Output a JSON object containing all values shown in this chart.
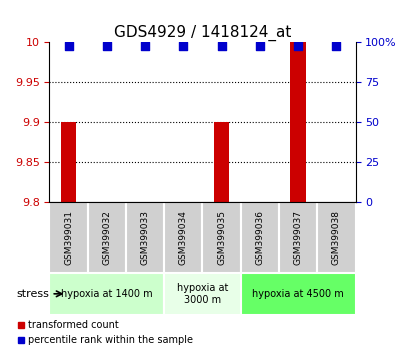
{
  "title": "GDS4929 / 1418124_at",
  "samples": [
    "GSM399031",
    "GSM399032",
    "GSM399033",
    "GSM399034",
    "GSM399035",
    "GSM399036",
    "GSM399037",
    "GSM399038"
  ],
  "transformed_counts": [
    9.9,
    9.8,
    9.8,
    9.8,
    9.9,
    9.8,
    10.0,
    9.8
  ],
  "percentile_ranks": [
    98,
    98,
    98,
    98,
    98,
    98,
    98,
    98
  ],
  "ylim_left": [
    9.8,
    10.0
  ],
  "yticks_left": [
    9.8,
    9.85,
    9.9,
    9.95,
    10.0
  ],
  "ytick_labels_left": [
    "9.8",
    "9.85",
    "9.9",
    "9.95",
    "10"
  ],
  "ylim_right": [
    0,
    100
  ],
  "yticks_right": [
    0,
    25,
    50,
    75,
    100
  ],
  "ytick_labels_right": [
    "0",
    "25",
    "50",
    "75",
    "100%"
  ],
  "bar_color": "#cc0000",
  "dot_color": "#0000cc",
  "left_tick_color": "#cc0000",
  "right_tick_color": "#0000cc",
  "grid_color": "black",
  "groups": [
    {
      "label": "hypoxia at 1400 m",
      "start": 0,
      "end": 3,
      "color": "#ccffcc"
    },
    {
      "label": "hypoxia at\n3000 m",
      "start": 3,
      "end": 5,
      "color": "#e8ffe8"
    },
    {
      "label": "hypoxia at 4500 m",
      "start": 5,
      "end": 8,
      "color": "#66ff66"
    }
  ],
  "stress_label": "stress",
  "legend_red_label": "transformed count",
  "legend_blue_label": "percentile rank within the sample",
  "sample_box_color": "#d0d0d0",
  "bar_width": 0.4,
  "dot_size": 40,
  "dotted_grid_yticks": [
    9.85,
    9.9,
    9.95
  ]
}
